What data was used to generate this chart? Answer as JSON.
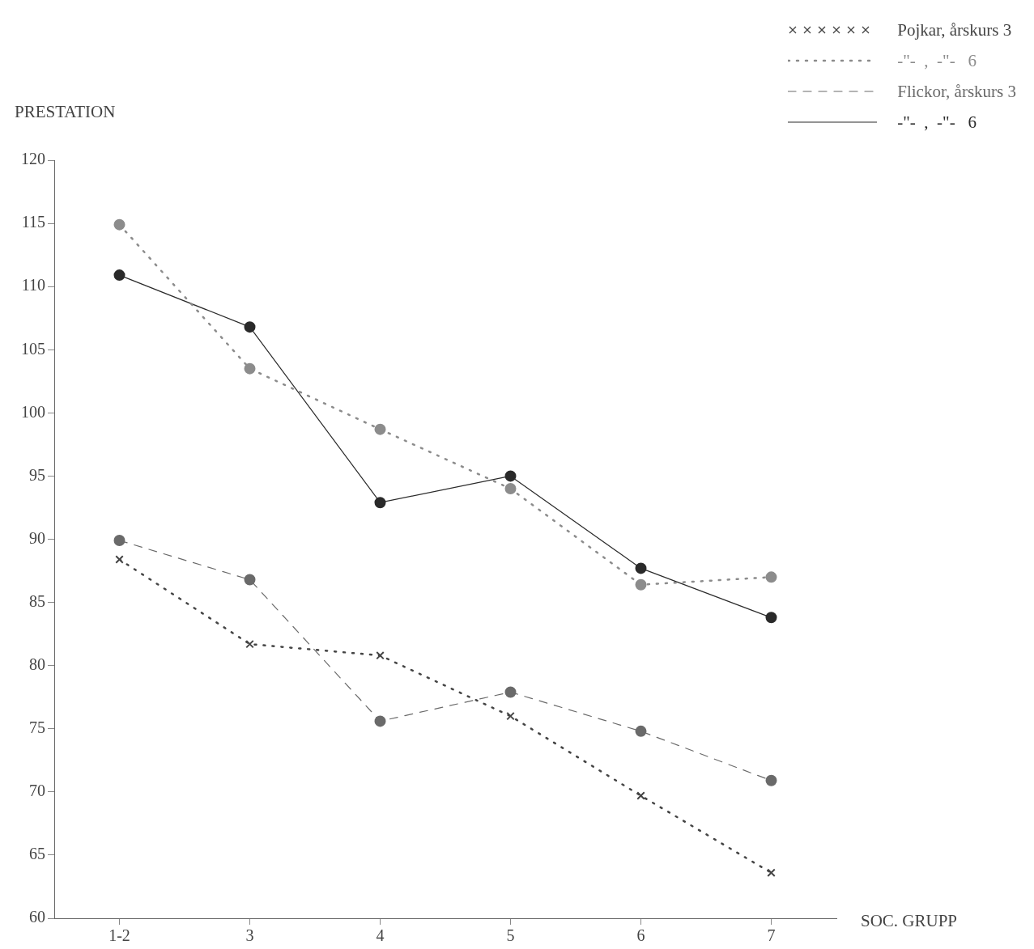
{
  "chart_data": {
    "type": "line",
    "ylabel": "PRESTATION",
    "xlabel": "SOC. GRUPP",
    "categories": [
      "1-2",
      "3",
      "4",
      "5",
      "6",
      "7"
    ],
    "ylim": [
      60,
      120
    ],
    "yticks": [
      60,
      65,
      70,
      75,
      80,
      85,
      90,
      95,
      100,
      105,
      110,
      115,
      120
    ],
    "legend": "top right",
    "series": [
      {
        "name": "Pojkar, årskurs 3",
        "color": "#444444",
        "line_style": "dotted",
        "marker": "cross",
        "values": [
          88.4,
          81.7,
          80.8,
          76.0,
          69.7,
          63.6
        ]
      },
      {
        "name": "-\"-  ,  -\"-   6",
        "color": "#8c8c8c",
        "line_style": "dotted",
        "marker": "circle",
        "values": [
          114.9,
          103.5,
          98.7,
          94.0,
          86.4,
          87.0
        ]
      },
      {
        "name": "Flickor, årskurs 3",
        "color": "#6a6a6a",
        "line_style": "dashed",
        "marker": "circle",
        "values": [
          89.9,
          86.8,
          75.6,
          77.9,
          74.8,
          70.9
        ]
      },
      {
        "name": "-\"-  ,  -\"-   6",
        "color": "#2a2a2a",
        "line_style": "solid",
        "marker": "circle",
        "values": [
          110.9,
          106.8,
          92.9,
          95.0,
          87.7,
          83.8
        ]
      }
    ]
  }
}
